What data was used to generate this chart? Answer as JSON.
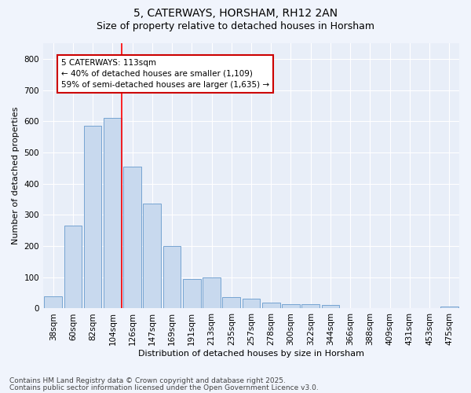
{
  "title_line1": "5, CATERWAYS, HORSHAM, RH12 2AN",
  "title_line2": "Size of property relative to detached houses in Horsham",
  "xlabel": "Distribution of detached houses by size in Horsham",
  "ylabel": "Number of detached properties",
  "bar_color": "#c8d9ee",
  "bar_edge_color": "#6699cc",
  "background_color": "#e8eef8",
  "grid_color": "#ffffff",
  "categories": [
    "38sqm",
    "60sqm",
    "82sqm",
    "104sqm",
    "126sqm",
    "147sqm",
    "169sqm",
    "191sqm",
    "213sqm",
    "235sqm",
    "257sqm",
    "278sqm",
    "300sqm",
    "322sqm",
    "344sqm",
    "366sqm",
    "388sqm",
    "409sqm",
    "431sqm",
    "453sqm",
    "475sqm"
  ],
  "values": [
    40,
    265,
    585,
    610,
    455,
    335,
    200,
    95,
    100,
    37,
    32,
    20,
    15,
    15,
    10,
    2,
    0,
    0,
    0,
    0,
    5
  ],
  "red_line_x": 3.45,
  "annotation_text": "5 CATERWAYS: 113sqm\n← 40% of detached houses are smaller (1,109)\n59% of semi-detached houses are larger (1,635) →",
  "footnote1": "Contains HM Land Registry data © Crown copyright and database right 2025.",
  "footnote2": "Contains public sector information licensed under the Open Government Licence v3.0.",
  "ylim": [
    0,
    850
  ],
  "yticks": [
    0,
    100,
    200,
    300,
    400,
    500,
    600,
    700,
    800
  ],
  "title_fontsize": 10,
  "subtitle_fontsize": 9,
  "annotation_fontsize": 7.5,
  "axis_label_fontsize": 8,
  "tick_fontsize": 7.5,
  "footnote_fontsize": 6.5
}
